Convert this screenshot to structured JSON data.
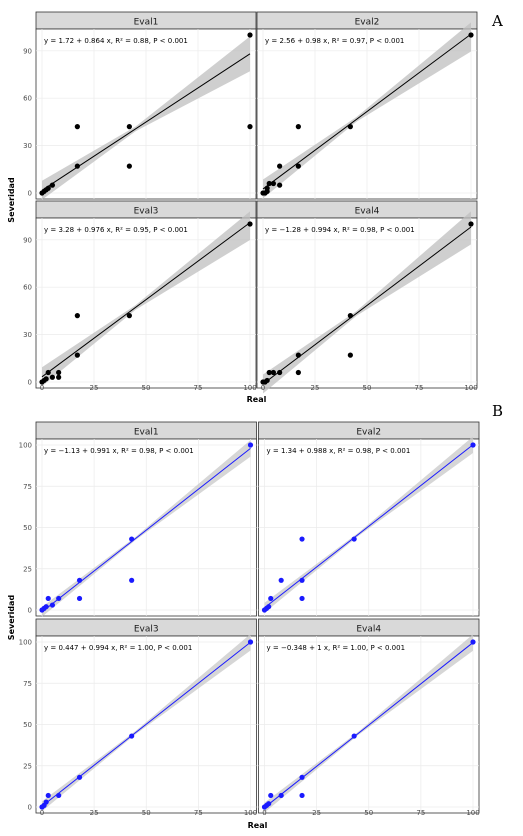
{
  "figure": {
    "panel_letters": [
      "A",
      "B"
    ]
  },
  "chart_data": [
    {
      "type": "scatter",
      "panel": "A",
      "xlabel": "Real",
      "ylabel": "Severidad",
      "xlim": [
        0,
        100
      ],
      "ylim": [
        0,
        100
      ],
      "xticks": [
        0,
        25,
        50,
        75,
        100
      ],
      "yticks": [
        0,
        30,
        60,
        90
      ],
      "grid": true,
      "point_color": "#000000",
      "line_color": "#000000",
      "band_color": "#bfbfbf",
      "facets": [
        {
          "title": "Eval1",
          "equation": "y = 1.72 + 0.864 x, R² = 0.88, P < 0.001",
          "intercept": 1.72,
          "slope": 0.864,
          "points": [
            [
              0,
              0
            ],
            [
              1,
              1
            ],
            [
              2,
              2
            ],
            [
              3,
              3
            ],
            [
              5,
              5
            ],
            [
              17,
              17
            ],
            [
              17,
              42
            ],
            [
              42,
              17
            ],
            [
              42,
              42
            ],
            [
              100,
              42
            ],
            [
              100,
              100
            ]
          ]
        },
        {
          "title": "Eval2",
          "equation": "y = 2.56 + 0.98 x, R² = 0.97, P < 0.001",
          "intercept": 2.56,
          "slope": 0.98,
          "points": [
            [
              0,
              0
            ],
            [
              1,
              0
            ],
            [
              2,
              1
            ],
            [
              2,
              3
            ],
            [
              3,
              6
            ],
            [
              5,
              6
            ],
            [
              8,
              17
            ],
            [
              8,
              5
            ],
            [
              17,
              17
            ],
            [
              17,
              42
            ],
            [
              42,
              42
            ],
            [
              100,
              100
            ]
          ]
        },
        {
          "title": "Eval3",
          "equation": "y = 3.28 + 0.976 x, R² = 0.95, P < 0.001",
          "intercept": 3.28,
          "slope": 0.976,
          "points": [
            [
              0,
              0
            ],
            [
              1,
              1
            ],
            [
              2,
              2
            ],
            [
              3,
              6
            ],
            [
              5,
              3
            ],
            [
              8,
              3
            ],
            [
              8,
              6
            ],
            [
              17,
              17
            ],
            [
              17,
              42
            ],
            [
              42,
              42
            ],
            [
              100,
              100
            ]
          ]
        },
        {
          "title": "Eval4",
          "equation": "y = −1.28 + 0.994 x, R² = 0.98, P < 0.001",
          "intercept": -1.28,
          "slope": 0.994,
          "points": [
            [
              0,
              0
            ],
            [
              1,
              0
            ],
            [
              2,
              1
            ],
            [
              3,
              6
            ],
            [
              5,
              6
            ],
            [
              8,
              6
            ],
            [
              17,
              6
            ],
            [
              17,
              17
            ],
            [
              42,
              17
            ],
            [
              42,
              42
            ],
            [
              100,
              100
            ]
          ]
        }
      ]
    },
    {
      "type": "scatter",
      "panel": "B",
      "xlabel": "Real",
      "ylabel": "Severidad",
      "xlim": [
        0,
        100
      ],
      "ylim": [
        0,
        100
      ],
      "xticks": [
        0,
        25,
        50,
        75,
        100
      ],
      "yticks": [
        0,
        25,
        50,
        75,
        100
      ],
      "grid": true,
      "point_color": "#1a1aff",
      "line_color": "#1a1aff",
      "band_color": "#c8c8c8",
      "facets": [
        {
          "title": "Eval1",
          "equation": "y = −1.13 + 0.991 x, R² = 0.98, P < 0.001",
          "intercept": -1.13,
          "slope": 0.991,
          "points": [
            [
              0,
              0
            ],
            [
              1,
              1
            ],
            [
              2,
              2
            ],
            [
              3,
              7
            ],
            [
              5,
              3
            ],
            [
              8,
              7
            ],
            [
              18,
              7
            ],
            [
              18,
              18
            ],
            [
              43,
              18
            ],
            [
              43,
              43
            ],
            [
              100,
              100
            ]
          ]
        },
        {
          "title": "Eval2",
          "equation": "y = 1.34 + 0.988 x, R² = 0.98, P < 0.001",
          "intercept": 1.34,
          "slope": 0.988,
          "points": [
            [
              0,
              0
            ],
            [
              1,
              1
            ],
            [
              2,
              2
            ],
            [
              3,
              7
            ],
            [
              8,
              18
            ],
            [
              18,
              7
            ],
            [
              18,
              18
            ],
            [
              18,
              43
            ],
            [
              43,
              43
            ],
            [
              100,
              100
            ]
          ]
        },
        {
          "title": "Eval3",
          "equation": "y = 0.447 + 0.994 x, R² = 1.00, P < 0.001",
          "intercept": 0.447,
          "slope": 0.994,
          "points": [
            [
              0,
              0
            ],
            [
              1,
              1
            ],
            [
              2,
              3
            ],
            [
              3,
              7
            ],
            [
              8,
              7
            ],
            [
              18,
              18
            ],
            [
              43,
              43
            ],
            [
              100,
              100
            ]
          ]
        },
        {
          "title": "Eval4",
          "equation": "y = −0.348 + 1 x, R² = 1.00, P < 0.001",
          "intercept": -0.348,
          "slope": 1.0,
          "points": [
            [
              0,
              0
            ],
            [
              1,
              1
            ],
            [
              2,
              2
            ],
            [
              3,
              7
            ],
            [
              8,
              7
            ],
            [
              18,
              7
            ],
            [
              18,
              18
            ],
            [
              43,
              43
            ],
            [
              100,
              100
            ]
          ]
        }
      ]
    }
  ]
}
